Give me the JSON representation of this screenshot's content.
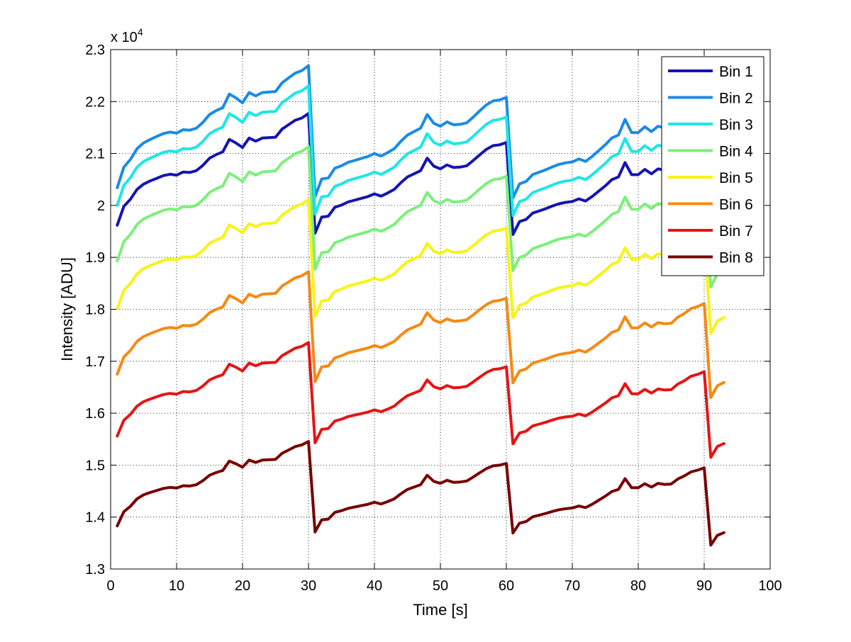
{
  "chart_data": {
    "type": "line",
    "title": "",
    "xlabel": "Time [s]",
    "ylabel": "Intensity [ADU]",
    "exponent_label": "x 10",
    "exponent_power": "4",
    "xlim": [
      0,
      100
    ],
    "ylim": [
      13000,
      23000
    ],
    "xticks": [
      0,
      10,
      20,
      30,
      40,
      50,
      60,
      70,
      80,
      90,
      100
    ],
    "yticks": [
      13000,
      14000,
      15000,
      16000,
      17000,
      18000,
      19000,
      20000,
      21000,
      22000,
      23000
    ],
    "ytick_labels": [
      "1.3",
      "1.4",
      "1.5",
      "1.6",
      "1.7",
      "1.8",
      "1.9",
      "2",
      "2.1",
      "2.2",
      "2.3"
    ],
    "grid": true,
    "legend_position": "top-right",
    "x": [
      1,
      2,
      3,
      4,
      5,
      6,
      7,
      8,
      9,
      10,
      11,
      12,
      13,
      14,
      15,
      16,
      17,
      18,
      19,
      20,
      21,
      22,
      23,
      24,
      25,
      26,
      27,
      28,
      29,
      30,
      31,
      32,
      33,
      34,
      35,
      36,
      37,
      38,
      39,
      40,
      41,
      42,
      43,
      44,
      45,
      46,
      47,
      48,
      49,
      50,
      51,
      52,
      53,
      54,
      55,
      56,
      57,
      58,
      59,
      60,
      61,
      62,
      63,
      64,
      65,
      66,
      67,
      68,
      69,
      70,
      71,
      72,
      73,
      74,
      75,
      76,
      77,
      78,
      79,
      80,
      81,
      82,
      83,
      84,
      85,
      86,
      87,
      88,
      89,
      90,
      91,
      92,
      93
    ],
    "base_profile": [
      0,
      420,
      580,
      800,
      920,
      990,
      1050,
      1110,
      1140,
      1120,
      1190,
      1180,
      1220,
      1340,
      1500,
      1580,
      1640,
      1920,
      1840,
      1740,
      1950,
      1880,
      1950,
      1960,
      1970,
      2150,
      2250,
      2350,
      2400,
      2500,
      -180,
      180,
      200,
      400,
      450,
      520,
      560,
      600,
      640,
      700,
      650,
      720,
      800,
      950,
      1080,
      1150,
      1220,
      1500,
      1320,
      1260,
      1350,
      1290,
      1300,
      1330,
      1450,
      1580,
      1700,
      1780,
      1800,
      1850,
      -210,
      80,
      130,
      270,
      320,
      370,
      430,
      480,
      510,
      530,
      590,
      540,
      640,
      760,
      880,
      1020,
      1080,
      1400,
      1130,
      1130,
      1250,
      1150,
      1260,
      1230,
      1240,
      1390,
      1480,
      1600,
      1650,
      1720,
      -570,
      -280,
      -200
    ],
    "series": [
      {
        "name": "Bin 1",
        "color": "#1414b4",
        "start": 19620,
        "scale": 0.86
      },
      {
        "name": "Bin 2",
        "color": "#1a8be6",
        "start": 20340,
        "scale": 0.94
      },
      {
        "name": "Bin 3",
        "color": "#1ee6e6",
        "start": 20000,
        "scale": 0.92
      },
      {
        "name": "Bin 4",
        "color": "#7cf07c",
        "start": 18930,
        "scale": 0.88
      },
      {
        "name": "Bin 5",
        "color": "#f5f514",
        "start": 18010,
        "scale": 0.84
      },
      {
        "name": "Bin 6",
        "color": "#f58a14",
        "start": 16750,
        "scale": 0.79
      },
      {
        "name": "Bin 7",
        "color": "#e61414",
        "start": 15560,
        "scale": 0.72
      },
      {
        "name": "Bin 8",
        "color": "#780000",
        "start": 13830,
        "scale": 0.65
      }
    ]
  }
}
